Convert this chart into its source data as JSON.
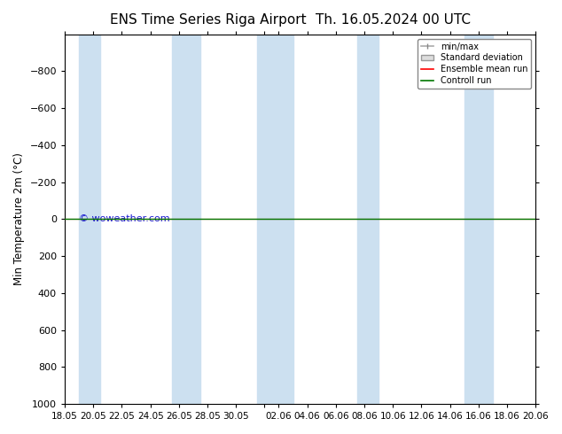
{
  "title": "ENS Time Series Riga Airport",
  "title2": "Th. 16.05.2024 00 UTC",
  "ylabel": "Min Temperature 2m (°C)",
  "ylim_top": -1000,
  "ylim_bottom": 1000,
  "yticks": [
    -800,
    -600,
    -400,
    -200,
    0,
    200,
    400,
    600,
    800,
    1000
  ],
  "xtick_labels": [
    "18.05",
    "20.05",
    "22.05",
    "24.05",
    "26.05",
    "28.05",
    "30.05",
    "",
    "02.06",
    "04.06",
    "06.06",
    "08.06",
    "10.06",
    "12.06",
    "14.06",
    "16.06",
    "18.06",
    "20.06"
  ],
  "xtick_positions": [
    0,
    2,
    4,
    6,
    8,
    10,
    12,
    14,
    15,
    17,
    19,
    21,
    23,
    25,
    27,
    29,
    31,
    33
  ],
  "watermark": "© woweather.com",
  "legend_entries": [
    "min/max",
    "Standard deviation",
    "Ensemble mean run",
    "Controll run"
  ],
  "bg_color": "#ffffff",
  "plot_bg_color": "#ffffff",
  "band_color": "#cce0f0",
  "control_run_y": 0,
  "control_run_color": "#007700",
  "ensemble_mean_color": "#ff0000",
  "x_start": 0,
  "x_end": 33,
  "band_pairs": [
    [
      1.0,
      2.5
    ],
    [
      7.5,
      9.5
    ],
    [
      13.5,
      16.0
    ],
    [
      20.5,
      22.0
    ],
    [
      28.0,
      30.0
    ]
  ]
}
